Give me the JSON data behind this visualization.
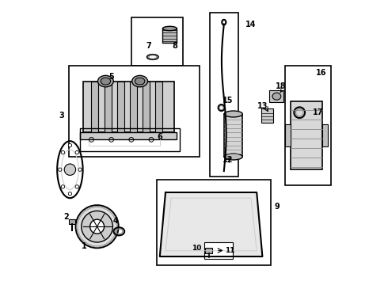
{
  "bg_color": "#ffffff",
  "line_color": "#000000",
  "light_gray": "#cccccc",
  "mid_gray": "#888888",
  "dark_gray": "#444444"
}
